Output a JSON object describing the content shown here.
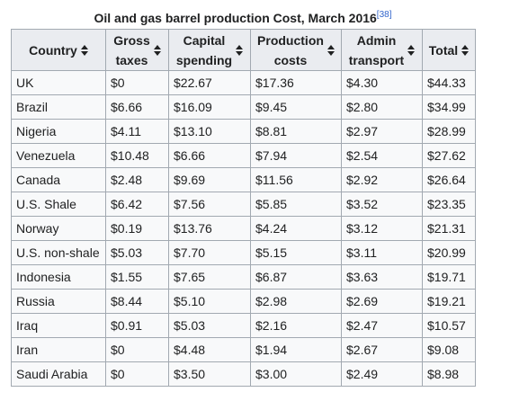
{
  "caption": {
    "title": "Oil and gas barrel production Cost, March 2016",
    "ref": "[38]"
  },
  "headers": [
    {
      "lines": [
        "Country"
      ]
    },
    {
      "lines": [
        "Gross",
        "taxes"
      ]
    },
    {
      "lines": [
        "Capital",
        "spending"
      ]
    },
    {
      "lines": [
        "Production",
        "costs"
      ]
    },
    {
      "lines": [
        "Admin",
        "transport"
      ]
    },
    {
      "lines": [
        "Total"
      ]
    }
  ],
  "rows": [
    [
      "UK",
      "$0",
      "$22.67",
      "$17.36",
      "$4.30",
      "$44.33"
    ],
    [
      "Brazil",
      "$6.66",
      "$16.09",
      "$9.45",
      "$2.80",
      "$34.99"
    ],
    [
      "Nigeria",
      "$4.11",
      "$13.10",
      "$8.81",
      "$2.97",
      "$28.99"
    ],
    [
      "Venezuela",
      "$10.48",
      "$6.66",
      "$7.94",
      "$2.54",
      "$27.62"
    ],
    [
      "Canada",
      "$2.48",
      "$9.69",
      "$11.56",
      "$2.92",
      "$26.64"
    ],
    [
      "U.S. Shale",
      "$6.42",
      "$7.56",
      "$5.85",
      "$3.52",
      "$23.35"
    ],
    [
      "Norway",
      "$0.19",
      "$13.76",
      "$4.24",
      "$3.12",
      "$21.31"
    ],
    [
      "U.S. non-shale",
      "$5.03",
      "$7.70",
      "$5.15",
      "$3.11",
      "$20.99"
    ],
    [
      "Indonesia",
      "$1.55",
      "$7.65",
      "$6.87",
      "$3.63",
      "$19.71"
    ],
    [
      "Russia",
      "$8.44",
      "$5.10",
      "$2.98",
      "$2.69",
      "$19.21"
    ],
    [
      "Iraq",
      "$0.91",
      "$5.03",
      "$2.16",
      "$2.47",
      "$10.57"
    ],
    [
      "Iran",
      "$0",
      "$4.48",
      "$1.94",
      "$2.67",
      "$9.08"
    ],
    [
      "Saudi Arabia",
      "$0",
      "$3.50",
      "$3.00",
      "$2.49",
      "$8.98"
    ]
  ],
  "colors": {
    "header_bg": "#eaecf0",
    "cell_bg": "#f8f9fa",
    "border": "#a2a9b1",
    "text": "#202122",
    "link": "#3366cc"
  },
  "icons": {
    "sort": "sort-both-icon"
  }
}
